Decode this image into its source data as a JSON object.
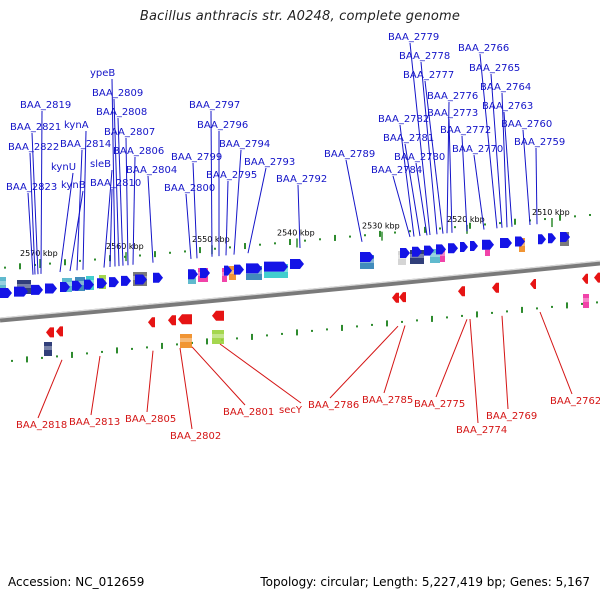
{
  "title": "Bacillus anthracis str. A0248, complete genome",
  "footer": {
    "accession": "Accession: NC_012659",
    "summary": "Topology: circular; Length: 5,227,419 bp; Genes: 5,167"
  },
  "scale": [
    "2570 kbp",
    "2560 kbp",
    "2550 kbp",
    "2540 kbp",
    "2530 kbp",
    "2520 kbp",
    "2510 kbp"
  ],
  "genes_forward": [
    "BAA_2823",
    "BAA_2822",
    "BAA_2821",
    "BAA_2819",
    "kynU",
    "kynB",
    "BAA_2814",
    "kynA",
    "sleB",
    "BAA_2810",
    "ypeB",
    "BAA_2809",
    "BAA_2808",
    "BAA_2807",
    "BAA_2806",
    "BAA_2804",
    "BAA_2800",
    "BAA_2799",
    "BAA_2797",
    "BAA_2796",
    "BAA_2795",
    "BAA_2794",
    "BAA_2793",
    "BAA_2792",
    "BAA_2789",
    "BAA_2784",
    "BAA_2782",
    "BAA_2781",
    "BAA_2780",
    "BAA_2779",
    "BAA_2778",
    "BAA_2777",
    "BAA_2776",
    "BAA_2773",
    "BAA_2772",
    "BAA_2770",
    "BAA_2766",
    "BAA_2765",
    "BAA_2764",
    "BAA_2763",
    "BAA_2760",
    "BAA_2759"
  ],
  "genes_reverse": [
    "BAA_2818",
    "BAA_2813",
    "BAA_2805",
    "BAA_2802",
    "BAA_2801",
    "secY",
    "BAA_2786",
    "BAA_2785",
    "BAA_2775",
    "BAA_2774",
    "BAA_2769",
    "BAA_2762"
  ],
  "colors": {
    "forward": "#1414e6",
    "reverse": "#e61414",
    "label_forward": "#1414c8",
    "label_reverse": "#d41414",
    "tick": "#2e8b2e"
  }
}
